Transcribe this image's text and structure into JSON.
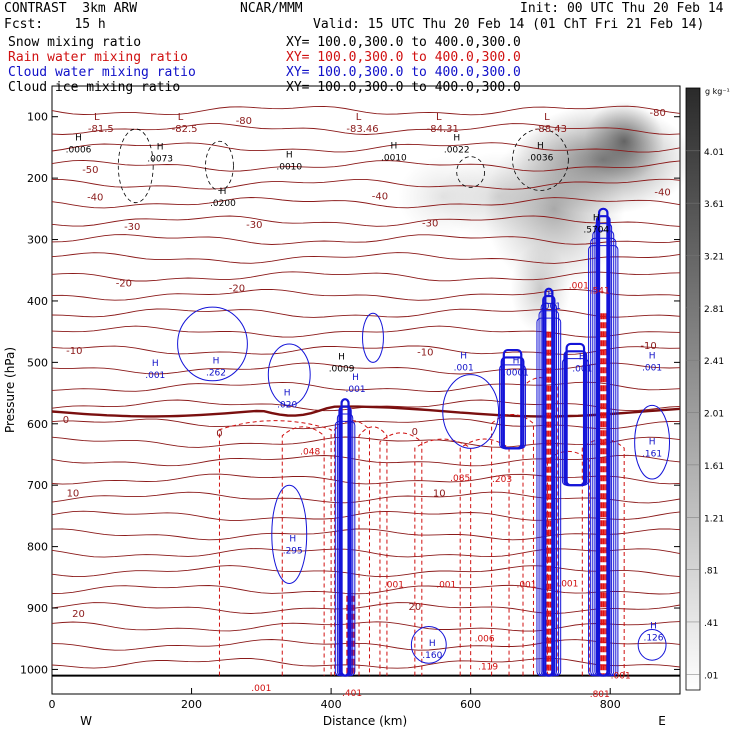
{
  "header": {
    "model": "CONTRAST  3km ARW",
    "forecast": "Fcst:    15 h",
    "center": "NCAR/MMM",
    "init": "Init: 00 UTC Thu 20 Feb 14",
    "valid": "Valid: 15 UTC Thu 20 Feb 14 (01 ChT Fri 21 Feb 14)",
    "fields": [
      {
        "name": "Snow mixing ratio",
        "xy": "XY= 100.0,300.0 to 400.0,300.0",
        "color": "#000000"
      },
      {
        "name": "Rain water mixing ratio",
        "xy": "XY= 100.0,300.0 to 400.0,300.0",
        "color": "#d01010"
      },
      {
        "name": "Cloud water mixing ratio",
        "xy": "XY= 100.0,300.0 to 400.0,300.0",
        "color": "#1010c8"
      },
      {
        "name": "Cloud ice mixing ratio",
        "xy": "XY= 100.0,300.0 to 400.0,300.0",
        "color": "#000000"
      }
    ]
  },
  "chart_data": {
    "type": "heatmap",
    "xlabel": "Distance (km)",
    "ylabel": "Pressure (hPa)",
    "xlim": [
      0,
      900
    ],
    "ylim": [
      50,
      1040
    ],
    "x_ticks": [
      0,
      200,
      400,
      600,
      800
    ],
    "y_ticks": [
      100,
      200,
      300,
      400,
      500,
      600,
      700,
      800,
      900,
      1000
    ],
    "x_end_labels": {
      "left": "W",
      "right": "E"
    },
    "colorbar": {
      "unit": "g kg⁻¹",
      "levels": [
        "4.01",
        "3.61",
        "3.21",
        "2.81",
        "2.41",
        "2.01",
        "1.61",
        "1.21",
        ".81",
        ".41",
        ".01"
      ]
    },
    "temperature_contours": {
      "color": "#8b1a1a",
      "levels": [
        -80,
        -50,
        -40,
        -30,
        -20,
        -10,
        0,
        10,
        20
      ],
      "labels": [
        {
          "text": "-80",
          "x": 275,
          "p": 105
        },
        {
          "text": "-80",
          "x": 868,
          "p": 92
        },
        {
          "text": "-50",
          "x": 55,
          "p": 185
        },
        {
          "text": "-40",
          "x": 62,
          "p": 230
        },
        {
          "text": "-40",
          "x": 470,
          "p": 228
        },
        {
          "text": "-40",
          "x": 875,
          "p": 222
        },
        {
          "text": "-30",
          "x": 115,
          "p": 278
        },
        {
          "text": "-30",
          "x": 290,
          "p": 275
        },
        {
          "text": "-30",
          "x": 542,
          "p": 272
        },
        {
          "text": "-20",
          "x": 103,
          "p": 370
        },
        {
          "text": "-20",
          "x": 265,
          "p": 378
        },
        {
          "text": "-10",
          "x": 32,
          "p": 480
        },
        {
          "text": "-10",
          "x": 535,
          "p": 482
        },
        {
          "text": "-10",
          "x": 855,
          "p": 472
        },
        {
          "text": "0",
          "x": 20,
          "p": 592
        },
        {
          "text": "0",
          "x": 240,
          "p": 614
        },
        {
          "text": "0",
          "x": 520,
          "p": 612
        },
        {
          "text": "10",
          "x": 30,
          "p": 712
        },
        {
          "text": "10",
          "x": 555,
          "p": 712
        },
        {
          "text": "20",
          "x": 38,
          "p": 908
        },
        {
          "text": "20",
          "x": 520,
          "p": 897
        }
      ]
    },
    "pressure_minima": [
      {
        "text": "-81.5",
        "x": 70,
        "p": 118
      },
      {
        "text": "-82.5",
        "x": 190,
        "p": 118
      },
      {
        "text": "-83.46",
        "x": 445,
        "p": 118
      },
      {
        "text": "-84.31",
        "x": 560,
        "p": 118
      },
      {
        "text": "-88.43",
        "x": 715,
        "p": 118
      }
    ],
    "cloud_ice_maxima": [
      {
        "text": ".0006",
        "x": 38,
        "p": 155
      },
      {
        "text": ".0073",
        "x": 155,
        "p": 170
      },
      {
        "text": ".0010",
        "x": 340,
        "p": 183
      },
      {
        "text": ".0200",
        "x": 245,
        "p": 242
      },
      {
        "text": ".0010",
        "x": 490,
        "p": 168
      },
      {
        "text": ".0022",
        "x": 580,
        "p": 155
      },
      {
        "text": ".0036",
        "x": 700,
        "p": 168
      },
      {
        "text": ".5704",
        "x": 780,
        "p": 285
      },
      {
        "text": ".0009",
        "x": 415,
        "p": 512
      }
    ],
    "cloud_water_maxima": [
      {
        "text": ".001",
        "x": 148,
        "p": 522
      },
      {
        "text": ".262",
        "x": 235,
        "p": 518
      },
      {
        "text": ".020",
        "x": 337,
        "p": 570
      },
      {
        "text": ".001",
        "x": 435,
        "p": 545
      },
      {
        "text": ".001",
        "x": 590,
        "p": 510
      },
      {
        "text": ".0001",
        "x": 665,
        "p": 518
      },
      {
        "text": ".001",
        "x": 715,
        "p": 410
      },
      {
        "text": ".001",
        "x": 760,
        "p": 512
      },
      {
        "text": ".001",
        "x": 860,
        "p": 510
      },
      {
        "text": ".161",
        "x": 860,
        "p": 650
      },
      {
        "text": ".295",
        "x": 345,
        "p": 808
      },
      {
        "text": ".160",
        "x": 545,
        "p": 978
      },
      {
        "text": ".126",
        "x": 862,
        "p": 950
      }
    ],
    "rain_maxima": [
      {
        "text": ".048",
        "x": 370,
        "p": 645
      },
      {
        "text": ".085",
        "x": 585,
        "p": 688
      },
      {
        "text": ".203",
        "x": 645,
        "p": 690
      },
      {
        "text": ".006",
        "x": 620,
        "p": 950
      },
      {
        "text": ".119",
        "x": 625,
        "p": 995
      },
      {
        "text": ".001",
        "x": 300,
        "p": 1030
      },
      {
        "text": ".401",
        "x": 430,
        "p": 1038
      },
      {
        "text": ".001",
        "x": 490,
        "p": 862
      },
      {
        "text": ".001",
        "x": 565,
        "p": 862
      },
      {
        "text": ".001",
        "x": 680,
        "p": 862
      },
      {
        "text": ".001",
        "x": 740,
        "p": 860
      },
      {
        "text": ".801",
        "x": 785,
        "p": 1040
      },
      {
        "text": ".001",
        "x": 815,
        "p": 1010
      },
      {
        "text": ".541",
        "x": 785,
        "p": 383
      },
      {
        "text": ".001",
        "x": 755,
        "p": 375
      }
    ]
  }
}
